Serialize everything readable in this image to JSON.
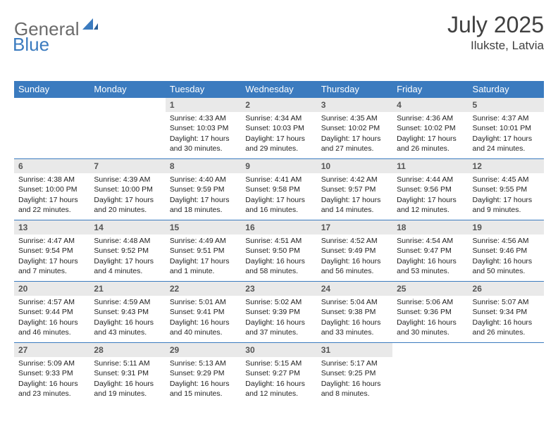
{
  "brand": {
    "part1": "General",
    "part2": "Blue"
  },
  "title": "July 2025",
  "location": "Ilukste, Latvia",
  "colors": {
    "header_bg": "#3b7bbf",
    "header_fg": "#ffffff",
    "daynum_bg": "#e9e9e9",
    "daynum_fg": "#555555",
    "rule": "#3b7bbf",
    "logo_gray": "#6b6b6b",
    "logo_blue": "#3b7bbf",
    "title_color": "#404040"
  },
  "weekdays": [
    "Sunday",
    "Monday",
    "Tuesday",
    "Wednesday",
    "Thursday",
    "Friday",
    "Saturday"
  ],
  "weeks": [
    [
      null,
      null,
      {
        "n": "1",
        "sr": "4:33 AM",
        "ss": "10:03 PM",
        "dl": "17 hours and 30 minutes."
      },
      {
        "n": "2",
        "sr": "4:34 AM",
        "ss": "10:03 PM",
        "dl": "17 hours and 29 minutes."
      },
      {
        "n": "3",
        "sr": "4:35 AM",
        "ss": "10:02 PM",
        "dl": "17 hours and 27 minutes."
      },
      {
        "n": "4",
        "sr": "4:36 AM",
        "ss": "10:02 PM",
        "dl": "17 hours and 26 minutes."
      },
      {
        "n": "5",
        "sr": "4:37 AM",
        "ss": "10:01 PM",
        "dl": "17 hours and 24 minutes."
      }
    ],
    [
      {
        "n": "6",
        "sr": "4:38 AM",
        "ss": "10:00 PM",
        "dl": "17 hours and 22 minutes."
      },
      {
        "n": "7",
        "sr": "4:39 AM",
        "ss": "10:00 PM",
        "dl": "17 hours and 20 minutes."
      },
      {
        "n": "8",
        "sr": "4:40 AM",
        "ss": "9:59 PM",
        "dl": "17 hours and 18 minutes."
      },
      {
        "n": "9",
        "sr": "4:41 AM",
        "ss": "9:58 PM",
        "dl": "17 hours and 16 minutes."
      },
      {
        "n": "10",
        "sr": "4:42 AM",
        "ss": "9:57 PM",
        "dl": "17 hours and 14 minutes."
      },
      {
        "n": "11",
        "sr": "4:44 AM",
        "ss": "9:56 PM",
        "dl": "17 hours and 12 minutes."
      },
      {
        "n": "12",
        "sr": "4:45 AM",
        "ss": "9:55 PM",
        "dl": "17 hours and 9 minutes."
      }
    ],
    [
      {
        "n": "13",
        "sr": "4:47 AM",
        "ss": "9:54 PM",
        "dl": "17 hours and 7 minutes."
      },
      {
        "n": "14",
        "sr": "4:48 AM",
        "ss": "9:52 PM",
        "dl": "17 hours and 4 minutes."
      },
      {
        "n": "15",
        "sr": "4:49 AM",
        "ss": "9:51 PM",
        "dl": "17 hours and 1 minute."
      },
      {
        "n": "16",
        "sr": "4:51 AM",
        "ss": "9:50 PM",
        "dl": "16 hours and 58 minutes."
      },
      {
        "n": "17",
        "sr": "4:52 AM",
        "ss": "9:49 PM",
        "dl": "16 hours and 56 minutes."
      },
      {
        "n": "18",
        "sr": "4:54 AM",
        "ss": "9:47 PM",
        "dl": "16 hours and 53 minutes."
      },
      {
        "n": "19",
        "sr": "4:56 AM",
        "ss": "9:46 PM",
        "dl": "16 hours and 50 minutes."
      }
    ],
    [
      {
        "n": "20",
        "sr": "4:57 AM",
        "ss": "9:44 PM",
        "dl": "16 hours and 46 minutes."
      },
      {
        "n": "21",
        "sr": "4:59 AM",
        "ss": "9:43 PM",
        "dl": "16 hours and 43 minutes."
      },
      {
        "n": "22",
        "sr": "5:01 AM",
        "ss": "9:41 PM",
        "dl": "16 hours and 40 minutes."
      },
      {
        "n": "23",
        "sr": "5:02 AM",
        "ss": "9:39 PM",
        "dl": "16 hours and 37 minutes."
      },
      {
        "n": "24",
        "sr": "5:04 AM",
        "ss": "9:38 PM",
        "dl": "16 hours and 33 minutes."
      },
      {
        "n": "25",
        "sr": "5:06 AM",
        "ss": "9:36 PM",
        "dl": "16 hours and 30 minutes."
      },
      {
        "n": "26",
        "sr": "5:07 AM",
        "ss": "9:34 PM",
        "dl": "16 hours and 26 minutes."
      }
    ],
    [
      {
        "n": "27",
        "sr": "5:09 AM",
        "ss": "9:33 PM",
        "dl": "16 hours and 23 minutes."
      },
      {
        "n": "28",
        "sr": "5:11 AM",
        "ss": "9:31 PM",
        "dl": "16 hours and 19 minutes."
      },
      {
        "n": "29",
        "sr": "5:13 AM",
        "ss": "9:29 PM",
        "dl": "16 hours and 15 minutes."
      },
      {
        "n": "30",
        "sr": "5:15 AM",
        "ss": "9:27 PM",
        "dl": "16 hours and 12 minutes."
      },
      {
        "n": "31",
        "sr": "5:17 AM",
        "ss": "9:25 PM",
        "dl": "16 hours and 8 minutes."
      },
      null,
      null
    ]
  ],
  "labels": {
    "sunrise": "Sunrise:",
    "sunset": "Sunset:",
    "daylight": "Daylight:"
  }
}
